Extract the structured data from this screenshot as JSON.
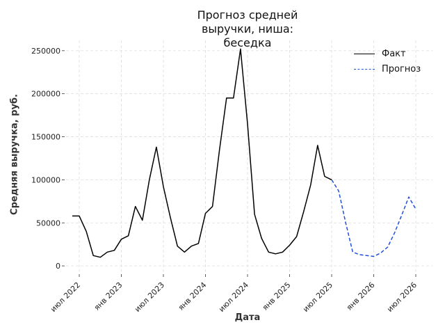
{
  "chart_data": {
    "type": "line",
    "title": "Прогноз средней выручки, ниша:\nбеседка",
    "xlabel": "Дата",
    "ylabel": "Средняя выручка, руб.",
    "x_ticks": [
      "июл 2022",
      "янв 2023",
      "июл 2023",
      "янв 2024",
      "июл 2024",
      "янв 2025",
      "июл 2025",
      "янв 2026",
      "июл 2026"
    ],
    "y_ticks": [
      0,
      50000,
      100000,
      150000,
      200000,
      250000
    ],
    "ylim": [
      -8000,
      262000
    ],
    "grid": true,
    "legend_position": "top-right",
    "series": [
      {
        "name": "Факт",
        "color": "#000000",
        "style": "solid",
        "x": [
          "2022-06",
          "2022-07",
          "2022-08",
          "2022-09",
          "2022-10",
          "2022-11",
          "2022-12",
          "2023-01",
          "2023-02",
          "2023-03",
          "2023-04",
          "2023-05",
          "2023-06",
          "2023-07",
          "2023-08",
          "2023-09",
          "2023-10",
          "2023-11",
          "2023-12",
          "2024-01",
          "2024-02",
          "2024-03",
          "2024-04",
          "2024-05",
          "2024-06",
          "2024-07",
          "2024-08",
          "2024-09",
          "2024-10",
          "2024-11",
          "2024-12",
          "2025-01",
          "2025-02",
          "2025-03",
          "2025-04",
          "2025-05",
          "2025-06",
          "2025-07"
        ],
        "y": [
          58000,
          58000,
          40000,
          12000,
          10000,
          16000,
          18000,
          31000,
          35000,
          69000,
          53000,
          100000,
          138000,
          92000,
          56000,
          23000,
          16000,
          23000,
          26000,
          61000,
          69000,
          135000,
          195000,
          195000,
          252000,
          165000,
          60000,
          32000,
          16000,
          14000,
          16000,
          24000,
          34000,
          63000,
          94000,
          140000,
          104000,
          100000
        ]
      },
      {
        "name": "Прогноз",
        "color": "#1f4fd8",
        "style": "dashed",
        "x": [
          "2025-07",
          "2025-08",
          "2025-09",
          "2025-10",
          "2025-11",
          "2025-12",
          "2026-01",
          "2026-02",
          "2026-03",
          "2026-04",
          "2026-05",
          "2026-06",
          "2026-07"
        ],
        "y": [
          100000,
          87000,
          50000,
          16000,
          13000,
          12000,
          11000,
          15000,
          22000,
          39000,
          59000,
          80000,
          66000
        ]
      }
    ]
  }
}
